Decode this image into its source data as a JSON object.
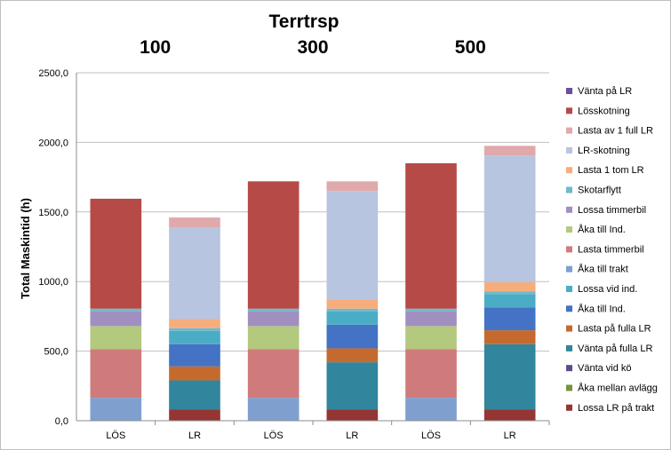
{
  "chart_data": {
    "type": "bar",
    "stacked": true,
    "title": "Terrtrsp",
    "groups": [
      "100",
      "300",
      "500"
    ],
    "categories": [
      "LÖS",
      "LR",
      "LÖS",
      "LR",
      "LÖS",
      "LR"
    ],
    "ylabel": "Total Maskintid (h)",
    "ylim": [
      0,
      2500
    ],
    "yticks": [
      "0,0",
      "500,0",
      "1000,0",
      "1500,0",
      "2000,0",
      "2500,0"
    ],
    "grid": true,
    "legend_position": "right",
    "series": [
      {
        "name": "Lossa LR på trakt",
        "color": "#943634",
        "values": [
          0,
          80,
          0,
          80,
          0,
          80
        ]
      },
      {
        "name": "Åka mellan avlägg",
        "color": "#77933c",
        "values": [
          0,
          0,
          0,
          0,
          0,
          0
        ]
      },
      {
        "name": "Vänta vid kö",
        "color": "#5f4b8b",
        "values": [
          0,
          0,
          0,
          0,
          0,
          0
        ]
      },
      {
        "name": "Vänta på fulla LR",
        "color": "#31859c",
        "values": [
          0,
          210,
          0,
          340,
          0,
          470
        ]
      },
      {
        "name": "Lasta på fulla LR",
        "color": "#c56a2f",
        "values": [
          0,
          100,
          0,
          100,
          0,
          100
        ]
      },
      {
        "name": "Åka till Ind.",
        "color": "#4472c4",
        "values": [
          0,
          160,
          0,
          170,
          0,
          165
        ]
      },
      {
        "name": "Lossa vid ind.",
        "color": "#4bacc6",
        "values": [
          0,
          95,
          0,
          95,
          0,
          95
        ]
      },
      {
        "name": "Åka till trakt",
        "color": "#7f9fcf",
        "values": [
          165,
          0,
          165,
          0,
          165,
          0
        ]
      },
      {
        "name": "Lasta timmerbil",
        "color": "#d07b7b",
        "values": [
          350,
          0,
          350,
          0,
          350,
          0
        ]
      },
      {
        "name": "Åka till Ind.",
        "color": "#b3c97e",
        "values": [
          165,
          0,
          165,
          0,
          165,
          0
        ]
      },
      {
        "name": "Lossa timmerbil",
        "color": "#a18fc0",
        "values": [
          105,
          0,
          105,
          0,
          105,
          0
        ]
      },
      {
        "name": "Skotarflytt",
        "color": "#6fb9cc",
        "values": [
          20,
          20,
          20,
          20,
          20,
          20
        ]
      },
      {
        "name": "Lasta 1 tom LR",
        "color": "#f6ad7c",
        "values": [
          0,
          65,
          0,
          65,
          0,
          65
        ]
      },
      {
        "name": "LR-skotning",
        "color": "#b8c5e0",
        "values": [
          0,
          660,
          0,
          780,
          0,
          910
        ]
      },
      {
        "name": "Lasta av 1 full LR",
        "color": "#e0a9ab",
        "values": [
          0,
          70,
          0,
          70,
          0,
          70
        ]
      },
      {
        "name": "Lösskotning",
        "color": "#b54a47",
        "values": [
          790,
          0,
          915,
          0,
          1045,
          0
        ]
      },
      {
        "name": "Vänta på LR",
        "color": "#6b4ea0",
        "values": [
          0,
          0,
          0,
          0,
          0,
          0
        ]
      }
    ]
  }
}
